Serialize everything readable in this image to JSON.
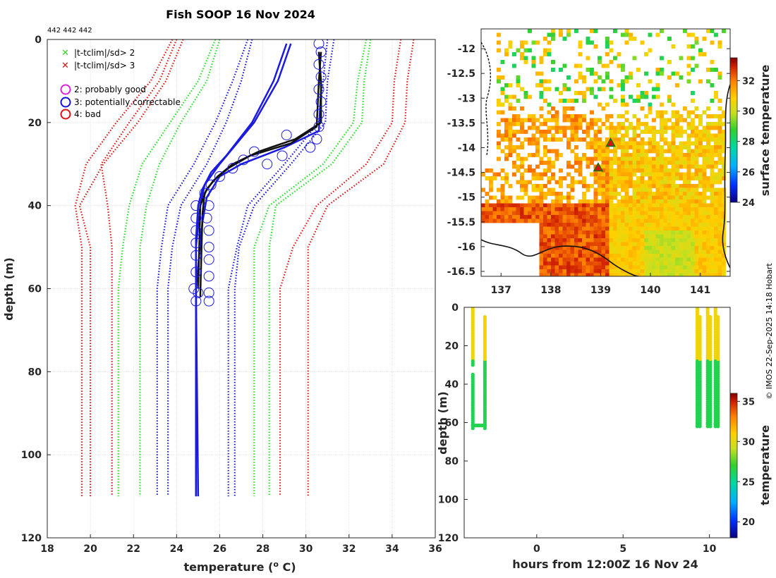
{
  "title": "Fish SOOP 16 Nov 2024",
  "id_label": "442 442 442",
  "credit": "© IMOS 22-Sep-2025 14:18 Hobart",
  "legend": {
    "cross_items": [
      {
        "label": "|t-tclim|/sd> 2",
        "color": "#22dd22"
      },
      {
        "label": "|t-tclim|/sd> 3",
        "color": "#dd1111"
      }
    ],
    "circle_items": [
      {
        "label": "2: probably good",
        "color": "#dd22dd"
      },
      {
        "label": "3: potentially correctable",
        "color": "#1111dd"
      },
      {
        "label": "4: bad",
        "color": "#dd1111"
      }
    ]
  },
  "chart_data": [
    {
      "id": "profile",
      "type": "line",
      "xlabel_prefix": "temperature (",
      "xlabel_sup": "o",
      "xlabel_suffix": " C)",
      "ylabel": "depth (m)",
      "xlim": [
        18,
        36
      ],
      "ylim": [
        120,
        0
      ],
      "xticks": [
        18,
        20,
        22,
        24,
        26,
        28,
        30,
        32,
        34,
        36
      ],
      "yticks": [
        0,
        20,
        40,
        60,
        80,
        100,
        120
      ],
      "grid": true,
      "climatology_depths": [
        0,
        10,
        20,
        30,
        40,
        50,
        60,
        110
      ],
      "climatology_lines": [
        {
          "color": "#dd1111",
          "values": [
            23.8,
            22.8,
            21.2,
            19.8,
            19.3,
            19.6,
            19.6,
            19.6
          ]
        },
        {
          "color": "#dd1111",
          "values": [
            24.3,
            23.5,
            22.2,
            20.6,
            19.5,
            20.0,
            20.0,
            20.0
          ]
        },
        {
          "color": "#dd1111",
          "values": [
            34.4,
            34.1,
            34.0,
            32.8,
            30.5,
            29.4,
            28.8,
            28.8
          ]
        },
        {
          "color": "#dd1111",
          "values": [
            35.0,
            34.7,
            34.6,
            33.6,
            31.0,
            30.1,
            30.1,
            30.1
          ]
        },
        {
          "color": "#dd1111",
          "values": [
            24.0,
            23.2,
            21.8,
            20.5,
            20.8,
            21.0,
            21.0,
            21.0
          ]
        },
        {
          "color": "#22dd22",
          "values": [
            25.8,
            25.0,
            23.7,
            22.4,
            21.8,
            21.5,
            21.3,
            21.3
          ]
        },
        {
          "color": "#22dd22",
          "values": [
            26.0,
            25.4,
            24.2,
            23.2,
            22.6,
            22.3,
            22.3,
            22.3
          ]
        },
        {
          "color": "#22dd22",
          "values": [
            32.8,
            32.4,
            32.2,
            30.8,
            28.3,
            27.6,
            27.6,
            27.6
          ]
        },
        {
          "color": "#22dd22",
          "values": [
            33.0,
            32.7,
            32.6,
            31.2,
            28.6,
            28.3,
            28.3,
            28.3
          ]
        },
        {
          "color": "#1111dd",
          "values": [
            27.3,
            26.6,
            25.8,
            24.8,
            23.6,
            23.3,
            23.1,
            23.1
          ]
        },
        {
          "color": "#1111dd",
          "values": [
            27.5,
            27.0,
            26.3,
            25.4,
            24.2,
            23.8,
            23.6,
            23.6
          ]
        },
        {
          "color": "#1111dd",
          "values": [
            31.0,
            30.8,
            30.6,
            29.0,
            27.3,
            26.8,
            26.4,
            26.4
          ]
        },
        {
          "color": "#1111dd",
          "values": [
            31.3,
            31.0,
            30.9,
            29.3,
            27.6,
            26.9,
            26.7,
            26.7
          ]
        }
      ],
      "profiles_blue": [
        {
          "depth": [
            1,
            10,
            20,
            30,
            35,
            40,
            50,
            60,
            110
          ],
          "temp": [
            29.3,
            28.7,
            27.6,
            26.0,
            25.3,
            25.1,
            24.9,
            24.9,
            24.9
          ]
        },
        {
          "depth": [
            1,
            10,
            20,
            28,
            32,
            36,
            40,
            48,
            60,
            110
          ],
          "temp": [
            29.1,
            28.5,
            27.5,
            26.3,
            25.6,
            25.2,
            25.0,
            24.9,
            24.9,
            25.0
          ]
        },
        {
          "depth": [
            3,
            12,
            22,
            26,
            30,
            33,
            38,
            44,
            60,
            110
          ],
          "temp": [
            30.6,
            30.7,
            30.6,
            29.0,
            27.0,
            26.0,
            25.4,
            25.2,
            24.9,
            24.9
          ]
        }
      ],
      "profiles_black": [
        {
          "depth": [
            3,
            10,
            20,
            24,
            27,
            30,
            33,
            36,
            40,
            60
          ],
          "temp": [
            30.6,
            30.7,
            30.7,
            29.5,
            27.8,
            26.6,
            25.9,
            25.4,
            25.1,
            25.0
          ]
        },
        {
          "depth": [
            3,
            10,
            21,
            25,
            28,
            31,
            34,
            37,
            42,
            62
          ],
          "temp": [
            30.7,
            30.6,
            30.5,
            29.3,
            27.4,
            26.4,
            25.7,
            25.3,
            25.2,
            25.1
          ]
        }
      ],
      "flagged_points": [
        {
          "t": 30.6,
          "d": 1
        },
        {
          "t": 30.7,
          "d": 3
        },
        {
          "t": 30.6,
          "d": 6
        },
        {
          "t": 30.7,
          "d": 9
        },
        {
          "t": 30.6,
          "d": 12
        },
        {
          "t": 30.7,
          "d": 15
        },
        {
          "t": 30.6,
          "d": 18
        },
        {
          "t": 30.6,
          "d": 21
        },
        {
          "t": 30.5,
          "d": 24
        },
        {
          "t": 30.2,
          "d": 26
        },
        {
          "t": 29.1,
          "d": 23
        },
        {
          "t": 28.9,
          "d": 28
        },
        {
          "t": 28.2,
          "d": 30
        },
        {
          "t": 27.6,
          "d": 27
        },
        {
          "t": 27.1,
          "d": 29
        },
        {
          "t": 26.6,
          "d": 31
        },
        {
          "t": 26.0,
          "d": 33
        },
        {
          "t": 25.6,
          "d": 35
        },
        {
          "t": 25.3,
          "d": 37
        },
        {
          "t": 24.9,
          "d": 40
        },
        {
          "t": 25.5,
          "d": 40
        },
        {
          "t": 24.9,
          "d": 43
        },
        {
          "t": 25.4,
          "d": 43
        },
        {
          "t": 24.9,
          "d": 46
        },
        {
          "t": 25.5,
          "d": 46
        },
        {
          "t": 24.9,
          "d": 49
        },
        {
          "t": 25.5,
          "d": 50
        },
        {
          "t": 24.9,
          "d": 52
        },
        {
          "t": 25.5,
          "d": 53
        },
        {
          "t": 24.9,
          "d": 56
        },
        {
          "t": 25.5,
          "d": 57
        },
        {
          "t": 24.8,
          "d": 60
        },
        {
          "t": 25.0,
          "d": 61
        },
        {
          "t": 25.5,
          "d": 61
        },
        {
          "t": 24.9,
          "d": 63
        },
        {
          "t": 25.5,
          "d": 63
        }
      ]
    },
    {
      "id": "map",
      "type": "heatmap",
      "xlim": [
        136.6,
        141.6
      ],
      "ylim": [
        -16.6,
        -11.6
      ],
      "xticks": [
        137,
        138,
        139,
        140,
        141
      ],
      "yticks": [
        -12,
        -12.5,
        -13,
        -13.5,
        -14,
        -14.5,
        -15,
        -15.5,
        -16,
        -16.5
      ],
      "colorbar_label": "surface temperature",
      "clim": [
        24,
        33.5
      ],
      "colorbar_ticks": [
        24,
        26,
        28,
        30,
        32
      ],
      "markers": [
        {
          "lon": 139.2,
          "lat": -13.9
        },
        {
          "lon": 138.95,
          "lat": -14.4
        }
      ]
    },
    {
      "id": "track",
      "type": "scatter",
      "xlabel": "hours from 12:00Z 16 Nov 24",
      "ylabel": "depth (m)",
      "xlim": [
        -4.2,
        11.2
      ],
      "ylim": [
        120,
        0
      ],
      "xticks": [
        0,
        5,
        10
      ],
      "yticks": [
        0,
        20,
        40,
        60,
        80,
        100,
        120
      ],
      "colorbar_label": "temperature",
      "clim": [
        18,
        36
      ],
      "colorbar_ticks": [
        20,
        25,
        30,
        35
      ],
      "casts": [
        {
          "t0": -3.7,
          "t1": -3.0,
          "t2": -2.3,
          "maxDepth": 63,
          "thermocline": 30
        },
        {
          "t0": 9.3,
          "t1": 9.45,
          "t2": 9.55,
          "maxDepth": 62,
          "thermocline": 30
        },
        {
          "t0": 9.9,
          "t1": 10.05,
          "t2": 10.15,
          "maxDepth": 62,
          "thermocline": 30
        },
        {
          "t0": 10.35,
          "t1": 10.5,
          "t2": 10.65,
          "maxDepth": 62,
          "thermocline": 30
        }
      ]
    }
  ]
}
